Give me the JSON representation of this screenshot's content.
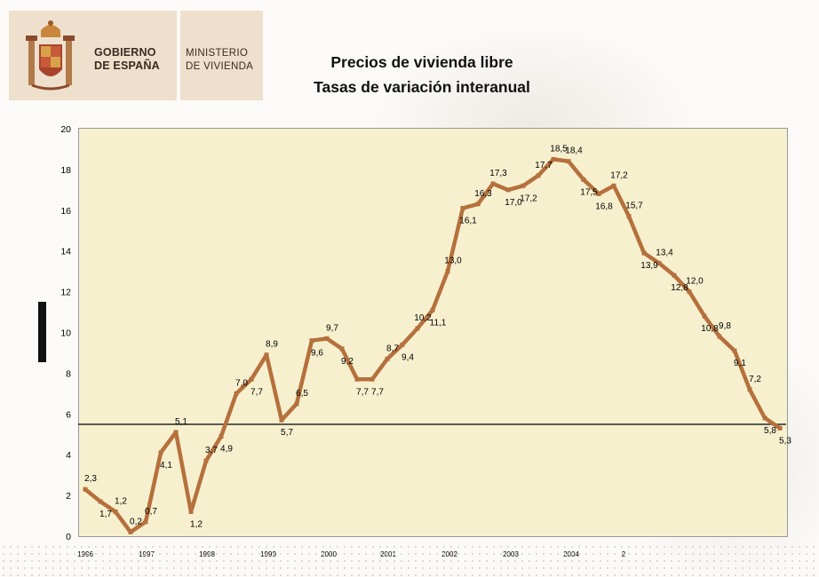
{
  "header": {
    "logo_line1": "GOBIERNO",
    "logo_line2": "DE ESPAÑA",
    "ministry_line1": "MINISTERIO",
    "ministry_line2": "DE VIVIENDA",
    "title_line1": "Precios de vivienda libre",
    "title_line2": "Tasas de variación interanual"
  },
  "colors": {
    "series": "#b5703c",
    "plot_bg": "#f7f0cf",
    "logo_bg": "#eee0cc"
  },
  "chart_data": {
    "type": "line",
    "title": "Precios de vivienda libre — Tasas de variación interanual",
    "xlabel": "",
    "ylabel": "",
    "ylim": [
      0,
      20
    ],
    "yticks": [
      0,
      2,
      4,
      6,
      8,
      10,
      12,
      14,
      16,
      18,
      20
    ],
    "year_labels": [
      "1996",
      "1997",
      "1998",
      "1999",
      "2000",
      "2001",
      "2002",
      "2003",
      "2004",
      "2"
    ],
    "reference_line": 5.5,
    "grid": false,
    "series": [
      {
        "name": "Precios de vivienda libre",
        "values": [
          2.3,
          1.7,
          1.2,
          0.2,
          0.7,
          4.1,
          5.1,
          1.2,
          3.7,
          4.9,
          7.0,
          7.7,
          8.9,
          5.7,
          6.5,
          9.6,
          9.7,
          9.2,
          7.7,
          7.7,
          8.7,
          9.4,
          10.2,
          11.1,
          13.0,
          16.1,
          16.3,
          17.3,
          17.0,
          17.2,
          17.7,
          18.5,
          18.4,
          17.5,
          16.8,
          17.2,
          15.7,
          13.9,
          13.4,
          12.8,
          12.0,
          10.8,
          9.8,
          9.1,
          7.2,
          5.8,
          5.3
        ],
        "labels": [
          "2,3",
          "1,7",
          "1,2",
          "0,2",
          "0,7",
          "4,1",
          "5,1",
          "1,2",
          "3,7",
          "4,9",
          "7,0",
          "7,7",
          "8,9",
          "5,7",
          "6,5",
          "9,6",
          "9,7",
          "9,2",
          "7,7",
          "7,7",
          "8,7",
          "9,4",
          "10,2",
          "11,1",
          "13,0",
          "16,1",
          "16,3",
          "17,3",
          "17,0",
          "17,2",
          "17,7",
          "18,5",
          "18,4",
          "17,5",
          "16,8",
          "17,2",
          "15,7",
          "13,9",
          "13,4",
          "12,8",
          "12,0",
          "10,8",
          "9,8",
          "9,1",
          "7,2",
          "5,8",
          "5,3"
        ]
      }
    ]
  }
}
